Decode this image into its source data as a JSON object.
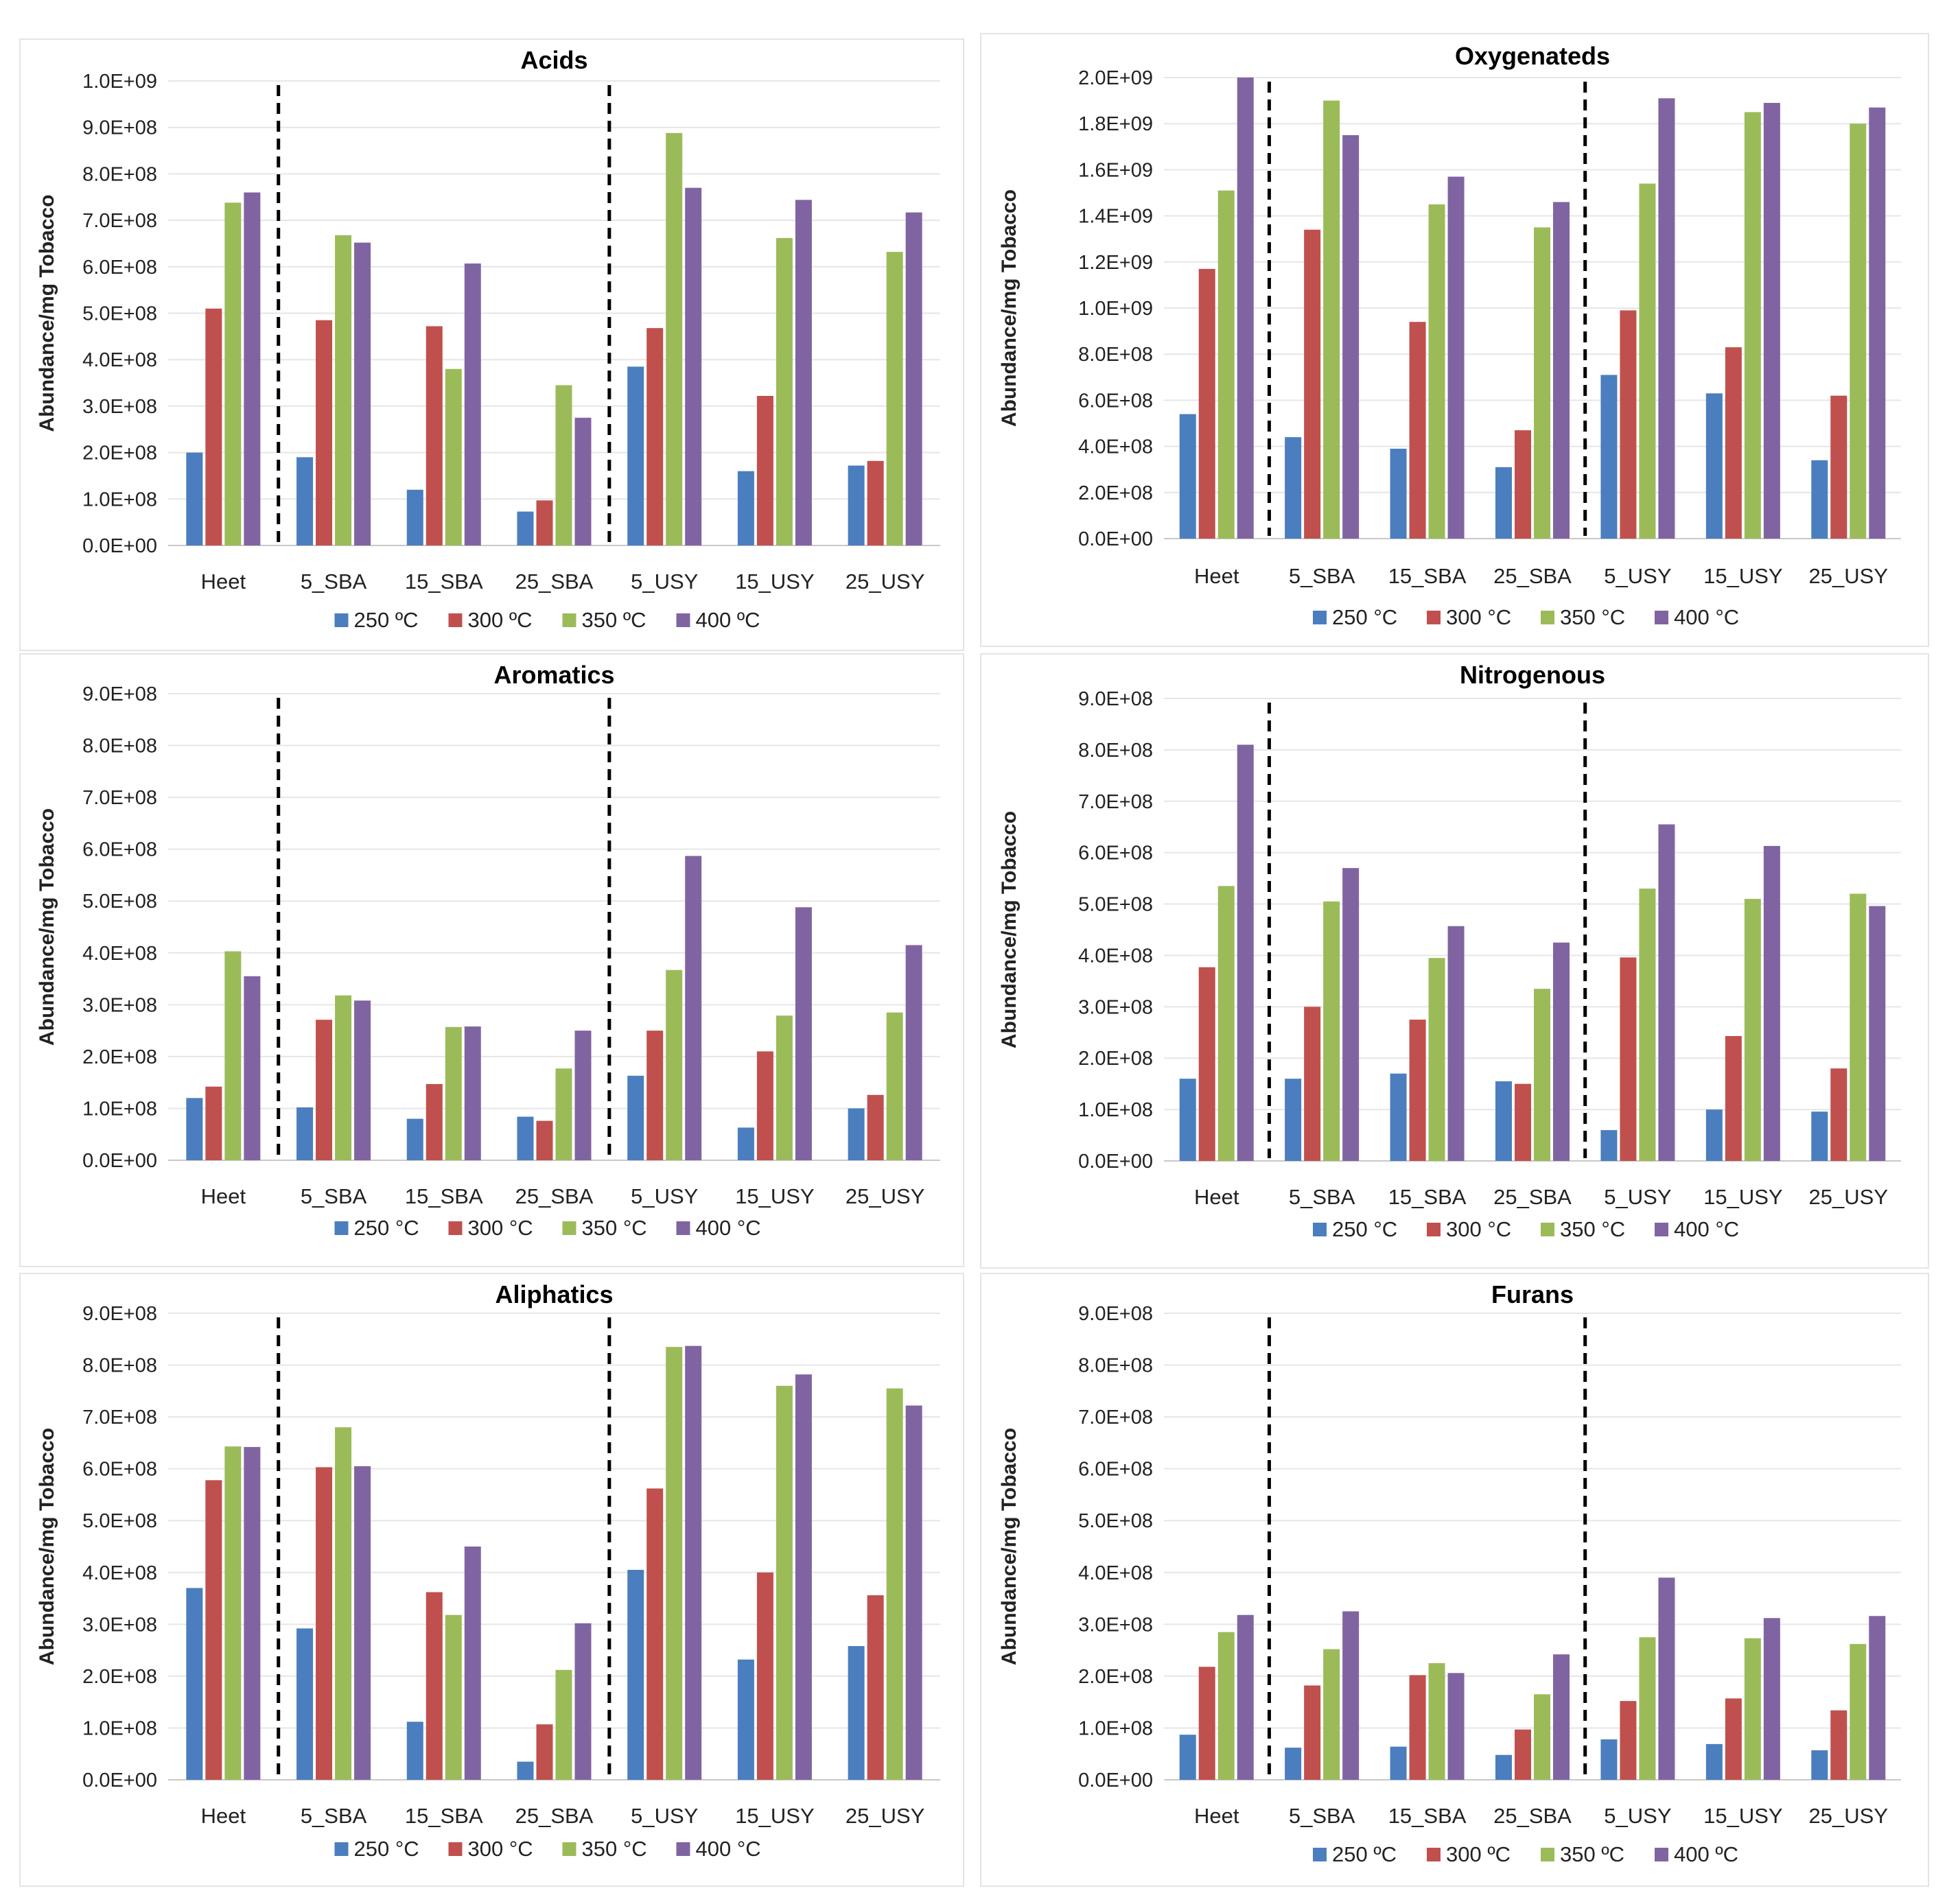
{
  "series_colors": [
    "#4a7ebf",
    "#c0504d",
    "#9bbb59",
    "#8064a2"
  ],
  "chart_data": [
    {
      "type": "bar",
      "title": "Acids",
      "ylabel": "Abundance/mg Tobacco",
      "xlabel": "",
      "categories": [
        "Heet",
        "5_SBA",
        "15_SBA",
        "25_SBA",
        "5_USY",
        "15_USY",
        "25_USY"
      ],
      "ylim": [
        0,
        1000000000
      ],
      "yticks": [
        "0.0E+00",
        "1.0E+08",
        "2.0E+08",
        "3.0E+08",
        "4.0E+08",
        "5.0E+08",
        "6.0E+08",
        "7.0E+08",
        "8.0E+08",
        "9.0E+08",
        "1.0E+09"
      ],
      "dividers_after": [
        0,
        3
      ],
      "grid": true,
      "legend_position": "bottom",
      "series": [
        {
          "name": "250 ºC",
          "values": [
            200000000,
            190000000,
            120000000,
            73000000,
            385000000,
            160000000,
            172000000
          ]
        },
        {
          "name": "300 ºC",
          "values": [
            510000000,
            485000000,
            472000000,
            97000000,
            468000000,
            322000000,
            182000000
          ]
        },
        {
          "name": "350 ºC",
          "values": [
            738000000,
            668000000,
            380000000,
            345000000,
            888000000,
            662000000,
            632000000
          ]
        },
        {
          "name": "400 ºC",
          "values": [
            760000000,
            652000000,
            607000000,
            275000000,
            770000000,
            744000000,
            717000000
          ]
        }
      ]
    },
    {
      "type": "bar",
      "title": "Oxygenateds",
      "ylabel": "Abundance/mg Tobacco",
      "xlabel": "",
      "categories": [
        "Heet",
        "5_SBA",
        "15_SBA",
        "25_SBA",
        "5_USY",
        "15_USY",
        "25_USY"
      ],
      "ylim": [
        0,
        2000000000
      ],
      "yticks": [
        "0.0E+00",
        "2.0E+08",
        "4.0E+08",
        "6.0E+08",
        "8.0E+08",
        "1.0E+09",
        "1.2E+09",
        "1.4E+09",
        "1.6E+09",
        "1.8E+09",
        "2.0E+09"
      ],
      "dividers_after": [
        0,
        3
      ],
      "grid": true,
      "legend_position": "bottom",
      "series": [
        {
          "name": "250 °C",
          "values": [
            540000000,
            440000000,
            390000000,
            310000000,
            710000000,
            630000000,
            340000000
          ]
        },
        {
          "name": "300 °C",
          "values": [
            1170000000,
            1340000000,
            940000000,
            470000000,
            990000000,
            830000000,
            620000000
          ]
        },
        {
          "name": "350 °C",
          "values": [
            1510000000,
            1900000000,
            1450000000,
            1350000000,
            1540000000,
            1850000000,
            1800000000
          ]
        },
        {
          "name": "400 °C",
          "values": [
            2000000000,
            1750000000,
            1570000000,
            1460000000,
            1910000000,
            1890000000,
            1870000000
          ]
        }
      ]
    },
    {
      "type": "bar",
      "title": "Aromatics",
      "ylabel": "Abundance/mg Tobacco",
      "xlabel": "",
      "categories": [
        "Heet",
        "5_SBA",
        "15_SBA",
        "25_SBA",
        "5_USY",
        "15_USY",
        "25_USY"
      ],
      "ylim": [
        0,
        900000000
      ],
      "yticks": [
        "0.0E+00",
        "1.0E+08",
        "2.0E+08",
        "3.0E+08",
        "4.0E+08",
        "5.0E+08",
        "6.0E+08",
        "7.0E+08",
        "8.0E+08",
        "9.0E+08"
      ],
      "dividers_after": [
        0,
        3
      ],
      "grid": true,
      "legend_position": "bottom",
      "series": [
        {
          "name": "250 °C",
          "values": [
            120000000,
            102000000,
            80000000,
            84000000,
            163000000,
            63000000,
            100000000
          ]
        },
        {
          "name": "300 °C",
          "values": [
            142000000,
            271000000,
            147000000,
            76000000,
            250000000,
            210000000,
            126000000
          ]
        },
        {
          "name": "350 °C",
          "values": [
            403000000,
            318000000,
            257000000,
            177000000,
            367000000,
            279000000,
            285000000
          ]
        },
        {
          "name": "400 °C",
          "values": [
            355000000,
            308000000,
            258000000,
            250000000,
            587000000,
            488000000,
            415000000
          ]
        }
      ]
    },
    {
      "type": "bar",
      "title": "Nitrogenous",
      "ylabel": "Abundance/mg Tobacco",
      "xlabel": "",
      "categories": [
        "Heet",
        "5_SBA",
        "15_SBA",
        "25_SBA",
        "5_USY",
        "15_USY",
        "25_USY"
      ],
      "ylim": [
        0,
        900000000
      ],
      "yticks": [
        "0.0E+00",
        "1.0E+08",
        "2.0E+08",
        "3.0E+08",
        "4.0E+08",
        "5.0E+08",
        "6.0E+08",
        "7.0E+08",
        "8.0E+08",
        "9.0E+08"
      ],
      "dividers_after": [
        0,
        3
      ],
      "grid": true,
      "legend_position": "bottom",
      "series": [
        {
          "name": "250 °C",
          "values": [
            160000000,
            160000000,
            170000000,
            155000000,
            60000000,
            100000000,
            96000000
          ]
        },
        {
          "name": "300 °C",
          "values": [
            377000000,
            300000000,
            275000000,
            150000000,
            396000000,
            243000000,
            180000000
          ]
        },
        {
          "name": "350 °C",
          "values": [
            535000000,
            505000000,
            395000000,
            335000000,
            530000000,
            510000000,
            520000000
          ]
        },
        {
          "name": "400 °C",
          "values": [
            810000000,
            570000000,
            457000000,
            425000000,
            655000000,
            613000000,
            496000000
          ]
        }
      ]
    },
    {
      "type": "bar",
      "title": "Aliphatics",
      "ylabel": "Abundance/mg Tobacco",
      "xlabel": "",
      "categories": [
        "Heet",
        "5_SBA",
        "15_SBA",
        "25_SBA",
        "5_USY",
        "15_USY",
        "25_USY"
      ],
      "ylim": [
        0,
        900000000
      ],
      "yticks": [
        "0.0E+00",
        "1.0E+08",
        "2.0E+08",
        "3.0E+08",
        "4.0E+08",
        "5.0E+08",
        "6.0E+08",
        "7.0E+08",
        "8.0E+08",
        "9.0E+08"
      ],
      "dividers_after": [
        0,
        3
      ],
      "grid": true,
      "legend_position": "bottom",
      "series": [
        {
          "name": "250 °C",
          "values": [
            370000000,
            292000000,
            112000000,
            35000000,
            405000000,
            232000000,
            258000000
          ]
        },
        {
          "name": "300 °C",
          "values": [
            578000000,
            603000000,
            362000000,
            107000000,
            562000000,
            400000000,
            356000000
          ]
        },
        {
          "name": "350 °C",
          "values": [
            643000000,
            680000000,
            318000000,
            212000000,
            835000000,
            760000000,
            755000000
          ]
        },
        {
          "name": "400 °C",
          "values": [
            642000000,
            605000000,
            450000000,
            302000000,
            837000000,
            782000000,
            722000000
          ]
        }
      ]
    },
    {
      "type": "bar",
      "title": "Furans",
      "ylabel": "Abundance/mg Tobacco",
      "xlabel": "",
      "categories": [
        "Heet",
        "5_SBA",
        "15_SBA",
        "25_SBA",
        "5_USY",
        "15_USY",
        "25_USY"
      ],
      "ylim": [
        0,
        900000000
      ],
      "yticks": [
        "0.0E+00",
        "1.0E+08",
        "2.0E+08",
        "3.0E+08",
        "4.0E+08",
        "5.0E+08",
        "6.0E+08",
        "7.0E+08",
        "8.0E+08",
        "9.0E+08"
      ],
      "dividers_after": [
        0,
        3
      ],
      "grid": true,
      "legend_position": "bottom",
      "series": [
        {
          "name": "250 ºC",
          "values": [
            87000000,
            62000000,
            64000000,
            48000000,
            78000000,
            69000000,
            57000000
          ]
        },
        {
          "name": "300 ºC",
          "values": [
            218000000,
            182000000,
            202000000,
            97000000,
            152000000,
            157000000,
            134000000
          ]
        },
        {
          "name": "350 ºC",
          "values": [
            285000000,
            252000000,
            225000000,
            165000000,
            275000000,
            273000000,
            262000000
          ]
        },
        {
          "name": "400 ºC",
          "values": [
            318000000,
            325000000,
            206000000,
            242000000,
            390000000,
            312000000,
            316000000
          ]
        }
      ]
    }
  ]
}
